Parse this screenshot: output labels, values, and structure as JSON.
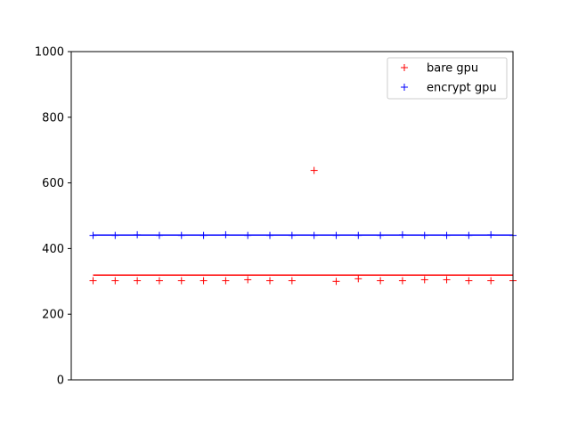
{
  "chart_data": {
    "type": "scatter",
    "title": "",
    "xlabel": "",
    "ylabel": "",
    "xlim": [
      0,
      20
    ],
    "ylim": [
      0,
      1000
    ],
    "yticks": [
      0,
      200,
      400,
      600,
      800,
      1000
    ],
    "grid": false,
    "legend_position": "top-right",
    "x": [
      1,
      2,
      3,
      4,
      5,
      6,
      7,
      8,
      9,
      10,
      11,
      12,
      13,
      14,
      15,
      16,
      17,
      18,
      19,
      20
    ],
    "series": [
      {
        "name": "bare gpu",
        "color": "#ff0000",
        "marker": "+",
        "values": [
          302,
          302,
          302,
          302,
          302,
          302,
          302,
          305,
          302,
          302,
          638,
          300,
          308,
          302,
          302,
          305,
          305,
          302,
          302,
          302
        ],
        "mean_line": 319
      },
      {
        "name": "encrypt gpu",
        "color": "#0000ff",
        "marker": "+",
        "values": [
          440,
          440,
          442,
          440,
          440,
          440,
          442,
          440,
          440,
          440,
          440,
          440,
          440,
          440,
          442,
          440,
          440,
          440,
          442,
          440
        ],
        "mean_line": 441
      }
    ]
  }
}
